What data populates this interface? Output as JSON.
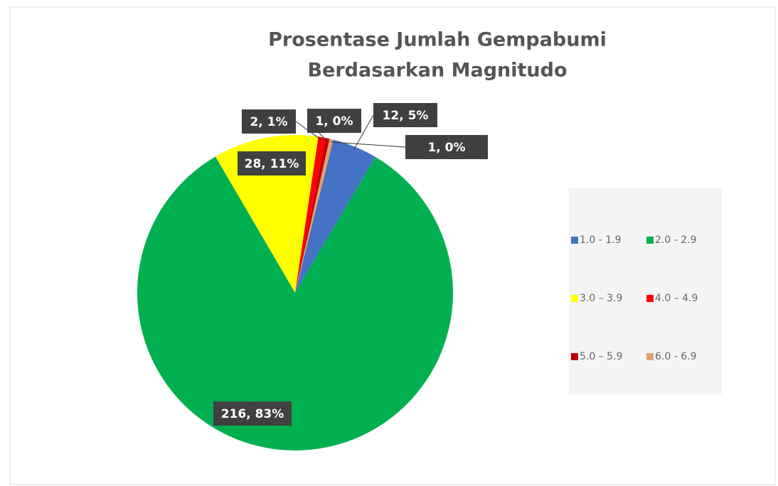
{
  "chart_data": {
    "type": "pie",
    "title": [
      "Prosentase Jumlah Gempabumi",
      "Berdasarkan Magnitudo"
    ],
    "categories": [
      "1.0 - 1.9",
      "2.0 - 2.9",
      "3.0 – 3.9",
      "4.0 – 4.9",
      "5.0 – 5.9",
      "6.0 - 6.9"
    ],
    "values": [
      12,
      216,
      28,
      2,
      1,
      1
    ],
    "value_labels": [
      "12, 5%",
      "216, 83%",
      "28, 11%",
      "2, 1%",
      "1, 0%",
      "1, 0%"
    ],
    "colors": [
      "#4472c4",
      "#00b050",
      "#ffff00",
      "#ff0000",
      "#c00000",
      "#e3a06e"
    ],
    "legend": "right"
  }
}
